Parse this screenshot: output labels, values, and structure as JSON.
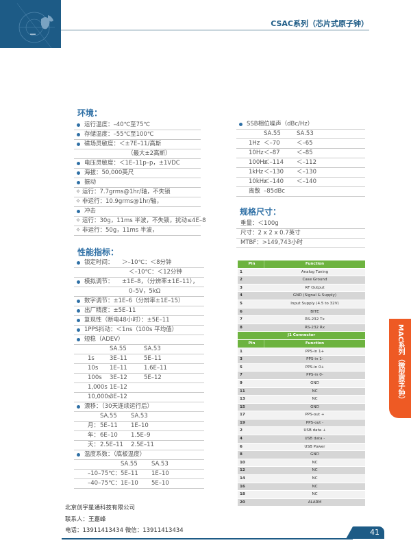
{
  "header": {
    "title": "CSAC系列（芯片式原子钟）"
  },
  "environment": {
    "heading": "环境：",
    "rows": [
      {
        "m": "dot",
        "t": "运行温度：–40℃至75℃"
      },
      {
        "m": "dot",
        "t": "存储温度：–55℃至100℃"
      },
      {
        "m": "dot",
        "t": "磁场灵敏度：＜±7E–11/高斯"
      },
      {
        "m": "",
        "t": "（最大±2高斯）"
      },
      {
        "m": "dot",
        "t": "电压灵敏度：＜1E–11p–p，±1VDC"
      },
      {
        "m": "dot",
        "t": "海拔：50,000英尺"
      },
      {
        "m": "dot",
        "t": "振动"
      },
      {
        "m": "dia",
        "t": "运行：7.7grms@1hr/轴，不失锁"
      },
      {
        "m": "dia",
        "t": "非运行：10.9grms@1hr/轴，"
      },
      {
        "m": "dot",
        "t": "冲击"
      },
      {
        "m": "dia",
        "t": "运行：30g，11ms 半波，不失锁，扰动≤4E–8"
      },
      {
        "m": "dia",
        "t": "非运行：50g，11ms 半波，"
      }
    ]
  },
  "performance": {
    "heading": "性能指标：",
    "rows": [
      {
        "m": "dot",
        "c": [
          "锁定时间：",
          "＞–10℃：＜8分钟"
        ]
      },
      {
        "m": "",
        "c": [
          "",
          "＜–10℃：＜12分钟"
        ]
      },
      {
        "m": "dot",
        "c": [
          "模拟调节：",
          "±1E–8，（分辨率±1E–11），"
        ]
      },
      {
        "m": "",
        "c": [
          "",
          "0–5V，5kΩ"
        ]
      },
      {
        "m": "dot",
        "c": [
          "数字调节：±1E–6（分辨率±1E–15）"
        ]
      },
      {
        "m": "dot",
        "c": [
          "出厂精度：±5E–11"
        ]
      },
      {
        "m": "dot",
        "c": [
          "复现性（断电48小时）：±5E–11"
        ]
      },
      {
        "m": "dot",
        "c": [
          "1PPS抖动：＜1ns（100s 平均值）"
        ]
      },
      {
        "m": "dot",
        "c": [
          "短稳（ADEV）"
        ]
      },
      {
        "m": "t1",
        "c": [
          "",
          "SA.55",
          "SA.53"
        ]
      },
      {
        "m": "t1",
        "c": [
          "1s",
          "3E–11",
          "5E–11"
        ]
      },
      {
        "m": "t1",
        "c": [
          "10s",
          "1E–11",
          "1.6E–11"
        ]
      },
      {
        "m": "t1",
        "c": [
          "100s",
          "3E–12",
          "5E–12"
        ]
      },
      {
        "m": "t1",
        "c": [
          "1,000s",
          "1E–12",
          ""
        ]
      },
      {
        "m": "t1",
        "c": [
          "10,000s",
          "3E–12",
          ""
        ]
      },
      {
        "m": "dot",
        "c": [
          "漂移：（30天连续运行后）"
        ]
      },
      {
        "m": "t2",
        "c": [
          "",
          "SA.55",
          "SA.53"
        ]
      },
      {
        "m": "t2",
        "c": [
          "月：",
          "5E–11",
          "1E–10"
        ]
      },
      {
        "m": "t2",
        "c": [
          "年：",
          "6E–10",
          "1.5E–9"
        ]
      },
      {
        "m": "t2",
        "c": [
          "天：",
          "2.5E–11",
          "2.5E–11"
        ]
      },
      {
        "m": "dot",
        "c": [
          "温度系数：（底板温度）"
        ]
      },
      {
        "m": "t3",
        "c": [
          "",
          "SA.55",
          "SA.53"
        ]
      },
      {
        "m": "t3",
        "c": [
          "–10–75℃：",
          "5E–11",
          "1E–10"
        ]
      },
      {
        "m": "t3",
        "c": [
          "–40–75℃：",
          "1E–10",
          "5E–10"
        ]
      }
    ]
  },
  "phase_noise": {
    "rows": [
      {
        "m": "dot",
        "c": [
          "SSB相位噪声（dBc/Hz）"
        ]
      },
      {
        "m": "t",
        "c": [
          "",
          "SA.55",
          "SA.53"
        ]
      },
      {
        "m": "t",
        "c": [
          "1Hz",
          "＜–70",
          "＜–65"
        ]
      },
      {
        "m": "t",
        "c": [
          "10Hz",
          "＜–87",
          "＜–85"
        ]
      },
      {
        "m": "t",
        "c": [
          "100Hz",
          "＜–114",
          "＜–112"
        ]
      },
      {
        "m": "t",
        "c": [
          "1kHz",
          "＜–130",
          "＜–130"
        ]
      },
      {
        "m": "t",
        "c": [
          "10kHz",
          "＜–140",
          "＜–140"
        ]
      },
      {
        "m": "t",
        "c": [
          "离散",
          "–85dBc",
          ""
        ]
      }
    ]
  },
  "dimensions": {
    "heading": "规格尺寸：",
    "rows": [
      "重量：＜100g",
      "尺寸：2 x 2 x 0.7英寸",
      "MTBF：>149,743小时"
    ]
  },
  "pin_table": {
    "header": [
      "Pin",
      "Function"
    ],
    "rows": [
      [
        "1",
        "Analog Tuning"
      ],
      [
        "2",
        "Case Ground"
      ],
      [
        "3",
        "RF Output"
      ],
      [
        "4",
        "GND (Signal & Supply)"
      ],
      [
        "5",
        "Input Supply (4.5 to 32V)"
      ],
      [
        "6",
        "BITE"
      ],
      [
        "7",
        "RS-232 Tx"
      ],
      [
        "8",
        "RS-232 Rx"
      ]
    ],
    "j1_title": "J1 Connector",
    "j1_rows": [
      [
        "1",
        "PPS-in 1+"
      ],
      [
        "3",
        "PPS-in 1-"
      ],
      [
        "5",
        "PPS-in 0+"
      ],
      [
        "7",
        "PPS-in 0-"
      ],
      [
        "9",
        "GND"
      ],
      [
        "11",
        "NC"
      ],
      [
        "13",
        "NC"
      ],
      [
        "15",
        "GND"
      ],
      [
        "17",
        "PPS-out +"
      ],
      [
        "19",
        "PPS-out -"
      ],
      [
        "2",
        "USB data +"
      ],
      [
        "4",
        "USB data -"
      ],
      [
        "6",
        "USB Power"
      ],
      [
        "8",
        "GND"
      ],
      [
        "10",
        "NC"
      ],
      [
        "12",
        "NC"
      ],
      [
        "14",
        "NC"
      ],
      [
        "16",
        "NC"
      ],
      [
        "18",
        "NC"
      ],
      [
        "20",
        "ALARM"
      ]
    ]
  },
  "side_tab": "MAC系列（微型原子钟）",
  "footer": {
    "company": "北京创宇星通科技有限公司",
    "contact": "联系人：王嘉峰",
    "phone": "电话：13911413434 微信：13911413434"
  },
  "page_number": "41",
  "colors": {
    "brand_blue": "#1d5b86",
    "heading_blue": "#2e6fa5",
    "table_green": "#6db33f",
    "tab_orange": "#ee5a24"
  }
}
